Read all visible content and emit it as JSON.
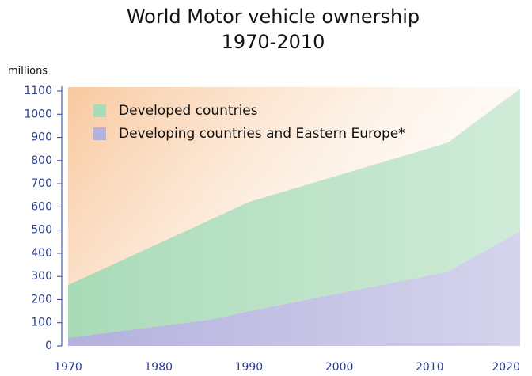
{
  "chart_data": {
    "type": "stacked_area",
    "title": [
      "World Motor vehicle ownership",
      "1970-2010"
    ],
    "y_label": "millions",
    "x": [
      1970,
      1986,
      1990,
      2012,
      2020
    ],
    "series": [
      {
        "name": "Developing countries and Eastern Europe*",
        "color": "#b3b1dd",
        "values": [
          35,
          115,
          150,
          320,
          495
        ]
      },
      {
        "name": "Developed countries",
        "color": "#a9dbb8",
        "values": [
          228,
          434,
          471,
          557,
          615
        ]
      }
    ],
    "legend_order": [
      1,
      0
    ],
    "xlim": [
      1970,
      2020
    ],
    "xticks": [
      1970,
      1980,
      1990,
      2000,
      2010,
      2020
    ],
    "ylim": [
      0,
      1100
    ],
    "yticks": [
      0,
      100,
      200,
      300,
      400,
      500,
      600,
      700,
      800,
      900,
      1000,
      1100
    ]
  }
}
